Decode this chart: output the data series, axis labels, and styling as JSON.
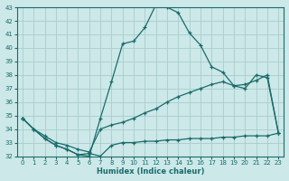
{
  "xlabel": "Humidex (Indice chaleur)",
  "bg_color": "#cce8e8",
  "grid_color": "#aacccc",
  "line_color": "#1a6b6b",
  "xlim": [
    -0.5,
    23.5
  ],
  "ylim": [
    32,
    43
  ],
  "xticks": [
    0,
    1,
    2,
    3,
    4,
    5,
    6,
    7,
    8,
    9,
    10,
    11,
    12,
    13,
    14,
    15,
    16,
    17,
    18,
    19,
    20,
    21,
    22,
    23
  ],
  "yticks": [
    32,
    33,
    34,
    35,
    36,
    37,
    38,
    39,
    40,
    41,
    42,
    43
  ],
  "line1_x": [
    0,
    1,
    2,
    3,
    4,
    5,
    6,
    7,
    8,
    9,
    10,
    11,
    12,
    13,
    14,
    15,
    16,
    17,
    18,
    19,
    20,
    21,
    22,
    23
  ],
  "line1_y": [
    34.8,
    34.0,
    33.3,
    32.8,
    32.5,
    32.1,
    32.0,
    34.8,
    37.5,
    40.3,
    40.5,
    41.5,
    43.2,
    43.0,
    42.6,
    41.1,
    40.2,
    38.6,
    38.2,
    37.2,
    37.0,
    38.0,
    37.8,
    33.7
  ],
  "line2_x": [
    0,
    1,
    2,
    3,
    4,
    5,
    6,
    7,
    8,
    9,
    10,
    11,
    12,
    13,
    14,
    15,
    16,
    17,
    18,
    19,
    20,
    21,
    22,
    23
  ],
  "line2_y": [
    34.8,
    34.0,
    33.3,
    32.8,
    32.5,
    32.1,
    32.2,
    32.0,
    32.8,
    33.0,
    33.0,
    33.1,
    33.1,
    33.2,
    33.2,
    33.3,
    33.3,
    33.3,
    33.4,
    33.4,
    33.5,
    33.5,
    33.5,
    33.7
  ],
  "line3_x": [
    0,
    1,
    2,
    3,
    4,
    5,
    6,
    7,
    8,
    9,
    10,
    11,
    12,
    13,
    14,
    15,
    16,
    17,
    18,
    19,
    20,
    21,
    22,
    23
  ],
  "line3_y": [
    34.8,
    34.0,
    33.5,
    33.0,
    32.8,
    32.5,
    32.3,
    34.0,
    34.3,
    34.5,
    34.8,
    35.2,
    35.5,
    36.0,
    36.4,
    36.7,
    37.0,
    37.3,
    37.5,
    37.2,
    37.3,
    37.6,
    38.0,
    33.7
  ]
}
